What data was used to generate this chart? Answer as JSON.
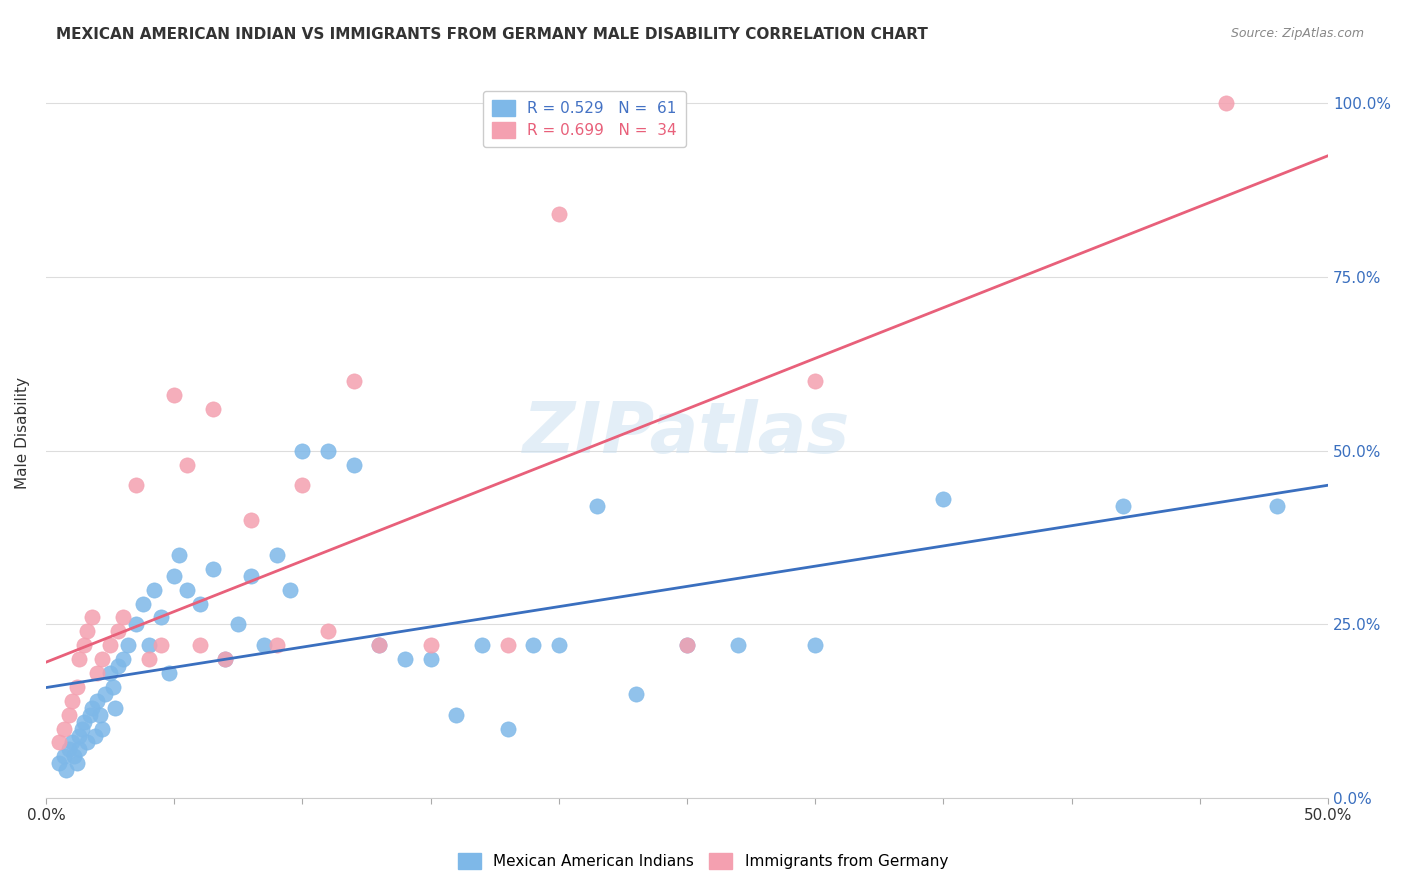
{
  "title": "MEXICAN AMERICAN INDIAN VS IMMIGRANTS FROM GERMANY MALE DISABILITY CORRELATION CHART",
  "source": "Source: ZipAtlas.com",
  "xlabel": "",
  "ylabel": "Male Disability",
  "xlim": [
    0.0,
    0.5
  ],
  "ylim": [
    0.0,
    1.05
  ],
  "xticks": [
    0.0,
    0.05,
    0.1,
    0.15,
    0.2,
    0.25,
    0.3,
    0.35,
    0.4,
    0.45,
    0.5
  ],
  "xtick_labels": [
    "0.0%",
    "",
    "",
    "",
    "",
    "",
    "",
    "",
    "",
    "",
    "50.0%"
  ],
  "ytick_labels": [
    "0.0%",
    "25.0%",
    "50.0%",
    "75.0%",
    "100.0%"
  ],
  "yticks": [
    0.0,
    0.25,
    0.5,
    0.75,
    1.0
  ],
  "legend1_text": "R = 0.529   N =  61",
  "legend2_text": "R = 0.699   N =  34",
  "blue_color": "#7eb8e8",
  "pink_color": "#f4a0b0",
  "blue_line_color": "#3a6fbf",
  "pink_line_color": "#e8607a",
  "watermark": "ZIPatlas",
  "blue_R": 0.529,
  "pink_R": 0.699,
  "blue_scatter_x": [
    0.005,
    0.007,
    0.008,
    0.009,
    0.01,
    0.011,
    0.012,
    0.013,
    0.013,
    0.014,
    0.015,
    0.016,
    0.017,
    0.018,
    0.019,
    0.02,
    0.021,
    0.022,
    0.023,
    0.025,
    0.026,
    0.027,
    0.028,
    0.03,
    0.032,
    0.035,
    0.038,
    0.04,
    0.042,
    0.045,
    0.048,
    0.05,
    0.052,
    0.055,
    0.06,
    0.065,
    0.07,
    0.075,
    0.08,
    0.085,
    0.09,
    0.095,
    0.1,
    0.11,
    0.12,
    0.13,
    0.14,
    0.15,
    0.16,
    0.17,
    0.18,
    0.19,
    0.2,
    0.215,
    0.23,
    0.25,
    0.27,
    0.3,
    0.35,
    0.42,
    0.48
  ],
  "blue_scatter_y": [
    0.05,
    0.06,
    0.04,
    0.07,
    0.08,
    0.06,
    0.05,
    0.09,
    0.07,
    0.1,
    0.11,
    0.08,
    0.12,
    0.13,
    0.09,
    0.14,
    0.12,
    0.1,
    0.15,
    0.18,
    0.16,
    0.13,
    0.19,
    0.2,
    0.22,
    0.25,
    0.28,
    0.22,
    0.3,
    0.26,
    0.18,
    0.32,
    0.35,
    0.3,
    0.28,
    0.33,
    0.2,
    0.25,
    0.32,
    0.22,
    0.35,
    0.3,
    0.5,
    0.5,
    0.48,
    0.22,
    0.2,
    0.2,
    0.12,
    0.22,
    0.1,
    0.22,
    0.22,
    0.42,
    0.15,
    0.22,
    0.22,
    0.22,
    0.43,
    0.42,
    0.42
  ],
  "pink_scatter_x": [
    0.005,
    0.007,
    0.009,
    0.01,
    0.012,
    0.013,
    0.015,
    0.016,
    0.018,
    0.02,
    0.022,
    0.025,
    0.028,
    0.03,
    0.035,
    0.04,
    0.045,
    0.05,
    0.055,
    0.06,
    0.065,
    0.07,
    0.08,
    0.09,
    0.1,
    0.11,
    0.12,
    0.13,
    0.15,
    0.18,
    0.2,
    0.25,
    0.3,
    0.46
  ],
  "pink_scatter_y": [
    0.08,
    0.1,
    0.12,
    0.14,
    0.16,
    0.2,
    0.22,
    0.24,
    0.26,
    0.18,
    0.2,
    0.22,
    0.24,
    0.26,
    0.45,
    0.2,
    0.22,
    0.58,
    0.48,
    0.22,
    0.56,
    0.2,
    0.4,
    0.22,
    0.45,
    0.24,
    0.6,
    0.22,
    0.22,
    0.22,
    0.84,
    0.22,
    0.6,
    1.0
  ]
}
